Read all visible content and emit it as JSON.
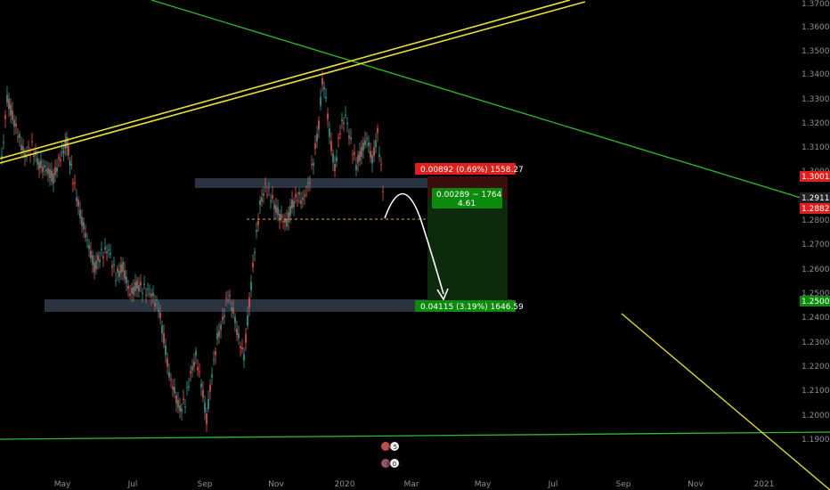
{
  "y_axis": {
    "ticks": [
      "1.37000",
      "1.36000",
      "1.35000",
      "1.34000",
      "1.33000",
      "1.32000",
      "1.31000",
      "1.30000",
      "1.29000",
      "1.28000",
      "1.27000",
      "1.26000",
      "1.25000",
      "1.24000",
      "1.23000",
      "1.22000",
      "1.21000",
      "1.20000",
      "1.19000"
    ]
  },
  "x_axis": {
    "ticks": [
      "May",
      "Jul",
      "Sep",
      "Nov",
      "2020",
      "Mar",
      "May",
      "Jul",
      "Sep",
      "Nov",
      "2021"
    ]
  },
  "price_tags": {
    "stop": {
      "text": "1.30010",
      "color": "#e01e1e"
    },
    "current": {
      "text": "1.29118",
      "color": "#1a1a1a"
    },
    "last": {
      "text": "1.28829",
      "color": "#e01e1e"
    },
    "target": {
      "text": "1.25003",
      "color": "#0c8a0c"
    }
  },
  "position": {
    "stop_label": "0.00892 (0.69%) 1558.27",
    "entry_label_line1": "0.00289 ~ 1764",
    "entry_label_line2": "4.61",
    "target_label": "0.04115 (3.19%) 1646.59"
  },
  "events": {
    "top_badge": "2 5",
    "bottom_badge": "8 0 1"
  },
  "colors": {
    "up": "#26a69a",
    "down": "#ef5350",
    "green_line": "#2ebd2e",
    "yellow_line": "#e8e033",
    "zone": "#2a3340"
  }
}
